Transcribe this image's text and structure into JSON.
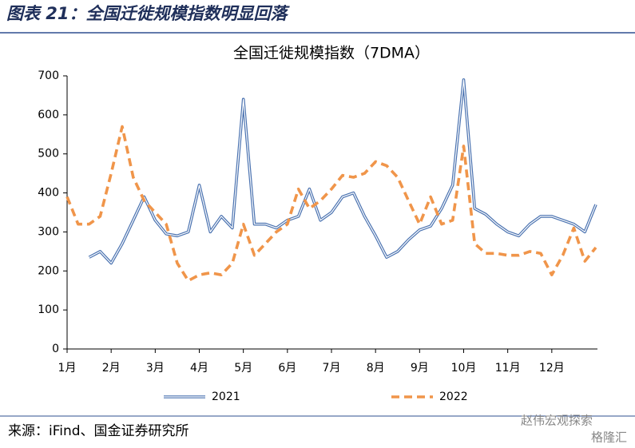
{
  "header": {
    "title": "图表 21：全国迁徙规模指数明显回落"
  },
  "source": "来源：iFind、国金证券研究所",
  "watermark": [
    "赵伟宏观探索",
    "格隆汇"
  ],
  "chart_data": {
    "type": "line",
    "title": "全国迁徙规模指数（7DMA）",
    "categories": [
      "1月",
      null,
      null,
      null,
      "2月",
      null,
      null,
      null,
      "3月",
      null,
      null,
      null,
      "4月",
      null,
      null,
      null,
      "5月",
      null,
      null,
      null,
      "6月",
      null,
      null,
      null,
      "7月",
      null,
      null,
      null,
      "8月",
      null,
      null,
      null,
      "9月",
      null,
      null,
      null,
      "10月",
      null,
      null,
      null,
      "11月",
      null,
      null,
      null,
      "12月",
      null,
      null,
      null,
      null
    ],
    "series": [
      {
        "name": "2021",
        "color": "#4a72b0",
        "style": "double",
        "values": [
          null,
          null,
          235,
          250,
          220,
          270,
          330,
          390,
          330,
          295,
          290,
          300,
          420,
          300,
          340,
          310,
          640,
          320,
          320,
          310,
          330,
          340,
          410,
          330,
          350,
          390,
          400,
          340,
          290,
          235,
          250,
          280,
          305,
          315,
          360,
          420,
          690,
          360,
          345,
          320,
          300,
          290,
          320,
          340,
          340,
          330,
          320,
          300,
          370
        ]
      },
      {
        "name": "2022",
        "color": "#f0954a",
        "style": "dashed",
        "values": [
          390,
          320,
          320,
          340,
          450,
          570,
          440,
          380,
          350,
          320,
          220,
          175,
          190,
          195,
          190,
          220,
          320,
          240,
          270,
          300,
          320,
          410,
          360,
          380,
          410,
          445,
          440,
          450,
          480,
          470,
          440,
          380,
          320,
          390,
          320,
          330,
          520,
          270,
          245,
          245,
          240,
          240,
          250,
          245,
          190,
          240,
          310,
          225,
          260
        ]
      }
    ],
    "ylim": [
      0,
      700
    ],
    "yticks": [
      0,
      100,
      200,
      300,
      400,
      500,
      600,
      700
    ],
    "grid": false,
    "legend": "bottom"
  }
}
